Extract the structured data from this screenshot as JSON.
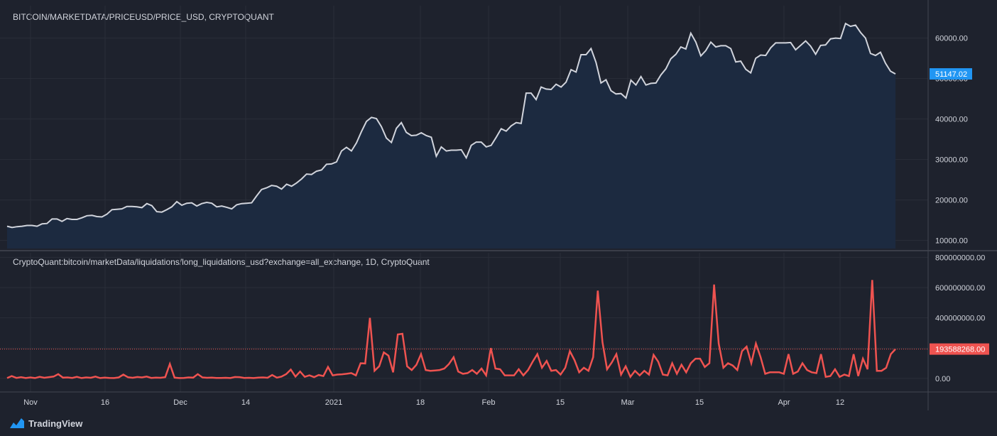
{
  "chart_data": [
    {
      "type": "area",
      "title": "BITCOIN/MARKETDATA/PRICEUSD/PRICE_USD, CRYPTOQUANT",
      "ylim": [
        8000,
        68000
      ],
      "y_ticks": [
        "10000.00",
        "20000.00",
        "30000.00",
        "40000.00",
        "50000.00",
        "60000.00"
      ],
      "grid": true,
      "colors": {
        "line": "#d1d4dc",
        "fill": "#1c2a40",
        "last_label_bg": "#2196f3"
      },
      "last_value_label": "51147.02",
      "last_value": 51147.02,
      "values": [
        13500,
        13200,
        13400,
        13500,
        13700,
        13700,
        13500,
        14100,
        14200,
        15300,
        15300,
        14700,
        15400,
        15200,
        15200,
        15600,
        16100,
        16200,
        15900,
        15800,
        16500,
        17600,
        17700,
        17800,
        18400,
        18400,
        18300,
        18100,
        19100,
        18600,
        17100,
        17000,
        17600,
        18300,
        19600,
        18700,
        19200,
        19300,
        18500,
        19100,
        19400,
        19200,
        18300,
        18500,
        18200,
        17800,
        18800,
        19100,
        19200,
        19300,
        21000,
        22600,
        23000,
        23600,
        23400,
        22700,
        23900,
        23400,
        24200,
        25200,
        26400,
        26300,
        27100,
        27400,
        28800,
        28900,
        29400,
        32100,
        33000,
        32100,
        34100,
        36900,
        39400,
        40400,
        40100,
        38100,
        35300,
        34200,
        37700,
        39100,
        36700,
        35900,
        36000,
        36600,
        35900,
        35500,
        30800,
        33100,
        32100,
        32300,
        32300,
        32400,
        30400,
        33500,
        34300,
        34300,
        33100,
        33500,
        35500,
        37600,
        37000,
        38300,
        39100,
        38900,
        46400,
        46400,
        44800,
        47900,
        47400,
        47300,
        48600,
        47900,
        49100,
        52200,
        51600,
        55900,
        55900,
        57400,
        54000,
        48900,
        49700,
        47000,
        46200,
        46300,
        45200,
        49600,
        48400,
        50500,
        48400,
        48800,
        48900,
        50900,
        52400,
        54900,
        56000,
        57800,
        57300,
        61200,
        59000,
        55600,
        56900,
        59000,
        57800,
        58100,
        58100,
        57400,
        54100,
        54300,
        52300,
        51400,
        55000,
        55800,
        55700,
        57600,
        58800,
        58800,
        58800,
        58900,
        57100,
        58200,
        59300,
        58000,
        56000,
        58200,
        58300,
        59800,
        60000,
        59900,
        63600,
        62900,
        63200,
        61400,
        60000,
        56200,
        55700,
        56500,
        53800,
        51800,
        51147.02
      ]
    },
    {
      "type": "line",
      "title": "CryptoQuant:bitcoin/marketData/liquidations/long_liquidations_usd?exchange=all_exchange, 1D, CryptoQuant",
      "ylim": [
        -90000000,
        830000000
      ],
      "y_ticks": [
        "0.00",
        "200000000.00",
        "400000000.00",
        "600000000.00",
        "800000000.00"
      ],
      "grid": true,
      "colors": {
        "line": "#ef5350",
        "last_label_bg": "#ef5350"
      },
      "last_value_label": "193588268.00",
      "last_value": 193588268,
      "x_tick_labels": [
        "Nov",
        "16",
        "Dec",
        "14",
        "2021",
        "18",
        "Feb",
        "15",
        "Mar",
        "15",
        "Apr",
        "12"
      ],
      "values": [
        2000000,
        15000000,
        3000000,
        8000000,
        2000000,
        6000000,
        2000000,
        10000000,
        4000000,
        8000000,
        12000000,
        28000000,
        5000000,
        6000000,
        3000000,
        10000000,
        2000000,
        6000000,
        4000000,
        12000000,
        2000000,
        5000000,
        3000000,
        2000000,
        6000000,
        25000000,
        7000000,
        4000000,
        9000000,
        6000000,
        12000000,
        3000000,
        5000000,
        4000000,
        8000000,
        95000000,
        5000000,
        2000000,
        3000000,
        6000000,
        5000000,
        28000000,
        6000000,
        4000000,
        5000000,
        3000000,
        3000000,
        4000000,
        2000000,
        9000000,
        8000000,
        3000000,
        4000000,
        2000000,
        5000000,
        6000000,
        4000000,
        22000000,
        5000000,
        12000000,
        28000000,
        58000000,
        12000000,
        45000000,
        10000000,
        20000000,
        8000000,
        22000000,
        15000000,
        75000000,
        20000000,
        25000000,
        27000000,
        30000000,
        35000000,
        20000000,
        100000000,
        98000000,
        400000000,
        50000000,
        80000000,
        172000000,
        150000000,
        40000000,
        290000000,
        295000000,
        80000000,
        55000000,
        90000000,
        160000000,
        55000000,
        50000000,
        52000000,
        55000000,
        65000000,
        95000000,
        140000000,
        45000000,
        30000000,
        35000000,
        55000000,
        30000000,
        65000000,
        20000000,
        200000000,
        65000000,
        60000000,
        20000000,
        20000000,
        20000000,
        60000000,
        20000000,
        55000000,
        110000000,
        160000000,
        70000000,
        115000000,
        50000000,
        55000000,
        25000000,
        70000000,
        180000000,
        120000000,
        40000000,
        70000000,
        50000000,
        140000000,
        580000000,
        240000000,
        60000000,
        105000000,
        160000000,
        25000000,
        80000000,
        10000000,
        50000000,
        20000000,
        50000000,
        25000000,
        155000000,
        110000000,
        25000000,
        20000000,
        100000000,
        30000000,
        90000000,
        40000000,
        100000000,
        130000000,
        130000000,
        75000000,
        100000000,
        620000000,
        230000000,
        70000000,
        100000000,
        85000000,
        55000000,
        180000000,
        210000000,
        100000000,
        230000000,
        140000000,
        30000000,
        40000000,
        40000000,
        40000000,
        30000000,
        160000000,
        30000000,
        45000000,
        100000000,
        55000000,
        40000000,
        35000000,
        160000000,
        10000000,
        15000000,
        60000000,
        10000000,
        25000000,
        15000000,
        160000000,
        15000000,
        130000000,
        60000000,
        650000000,
        50000000,
        50000000,
        70000000,
        160000000,
        193588268
      ]
    }
  ],
  "brand": {
    "name": "TradingView"
  }
}
